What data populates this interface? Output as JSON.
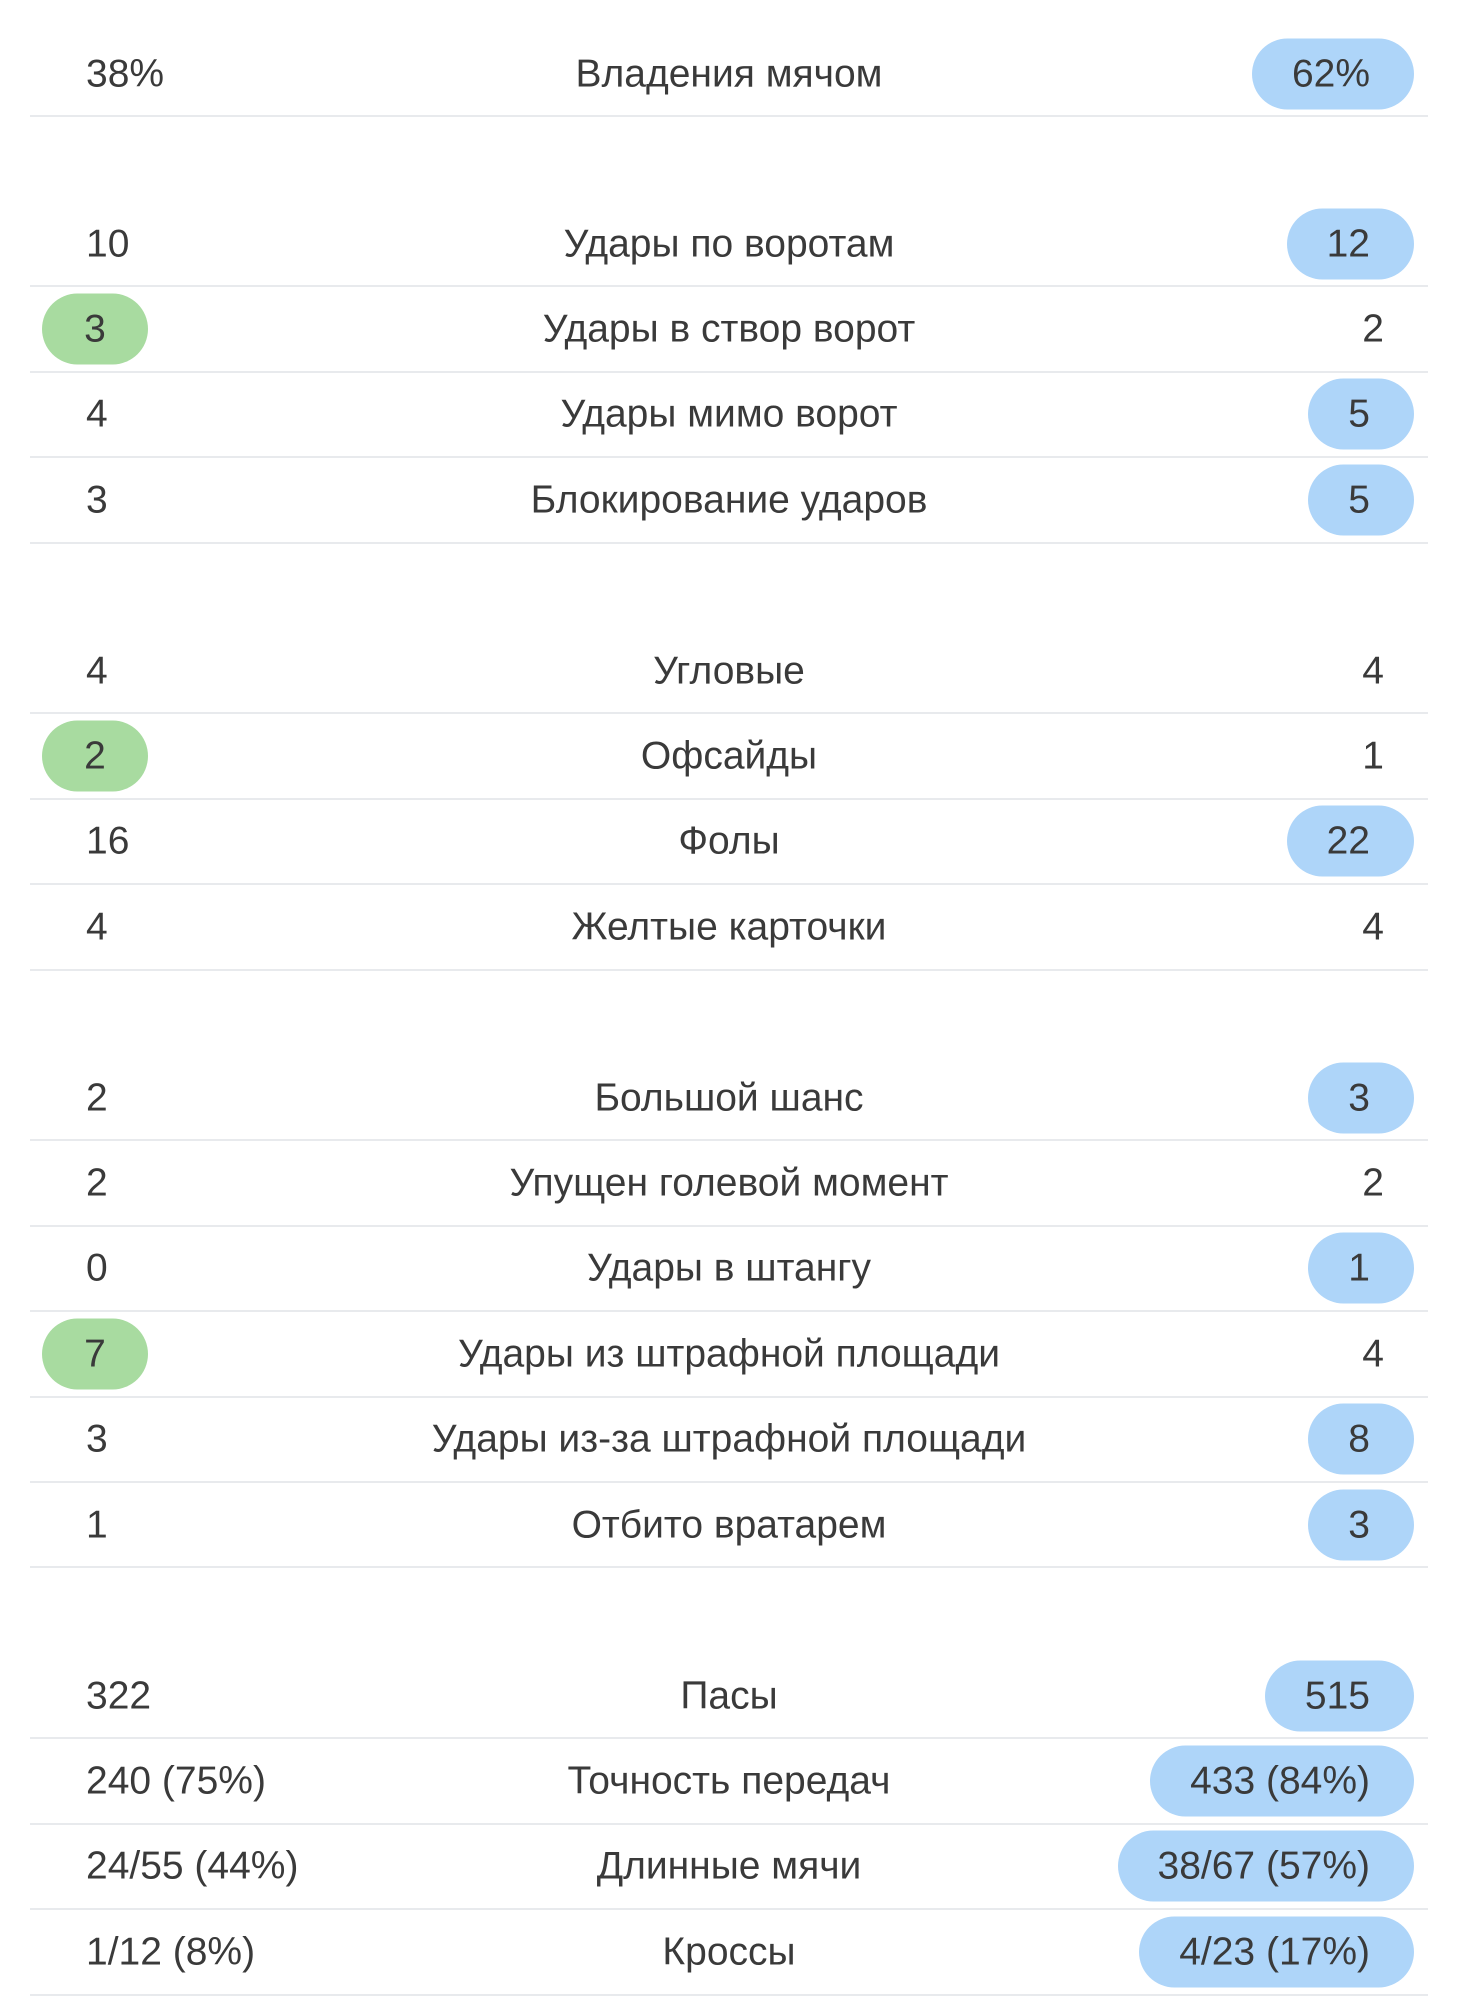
{
  "highlight_colors": {
    "home": "#a8dba0",
    "away": "#aed5f9"
  },
  "groups": [
    {
      "rows": [
        {
          "home": "38%",
          "label": "Владения мячом",
          "away": "62%",
          "highlight": "away"
        }
      ]
    },
    {
      "rows": [
        {
          "home": "10",
          "label": "Удары по воротам",
          "away": "12",
          "highlight": "away"
        },
        {
          "home": "3",
          "label": "Удары в створ ворот",
          "away": "2",
          "highlight": "home"
        },
        {
          "home": "4",
          "label": "Удары мимо ворот",
          "away": "5",
          "highlight": "away"
        },
        {
          "home": "3",
          "label": "Блокирование ударов",
          "away": "5",
          "highlight": "away"
        }
      ]
    },
    {
      "rows": [
        {
          "home": "4",
          "label": "Угловые",
          "away": "4",
          "highlight": "none"
        },
        {
          "home": "2",
          "label": "Офсайды",
          "away": "1",
          "highlight": "home"
        },
        {
          "home": "16",
          "label": "Фолы",
          "away": "22",
          "highlight": "away"
        },
        {
          "home": "4",
          "label": "Желтые карточки",
          "away": "4",
          "highlight": "none"
        }
      ]
    },
    {
      "rows": [
        {
          "home": "2",
          "label": "Большой шанс",
          "away": "3",
          "highlight": "away"
        },
        {
          "home": "2",
          "label": "Упущен голевой момент",
          "away": "2",
          "highlight": "none"
        },
        {
          "home": "0",
          "label": "Удары в штангу",
          "away": "1",
          "highlight": "away"
        },
        {
          "home": "7",
          "label": "Удары из штрафной площади",
          "away": "4",
          "highlight": "home"
        },
        {
          "home": "3",
          "label": "Удары из-за штрафной площади",
          "away": "8",
          "highlight": "away"
        },
        {
          "home": "1",
          "label": "Отбито вратарем",
          "away": "3",
          "highlight": "away"
        }
      ]
    },
    {
      "rows": [
        {
          "home": "322",
          "label": "Пасы",
          "away": "515",
          "highlight": "away"
        },
        {
          "home": "240 (75%)",
          "label": "Точность передач",
          "away": "433 (84%)",
          "highlight": "away"
        },
        {
          "home": "24/55 (44%)",
          "label": "Длинные мячи",
          "away": "38/67 (57%)",
          "highlight": "away"
        },
        {
          "home": "1/12 (8%)",
          "label": "Кроссы",
          "away": "4/23 (17%)",
          "highlight": "away"
        }
      ]
    }
  ]
}
